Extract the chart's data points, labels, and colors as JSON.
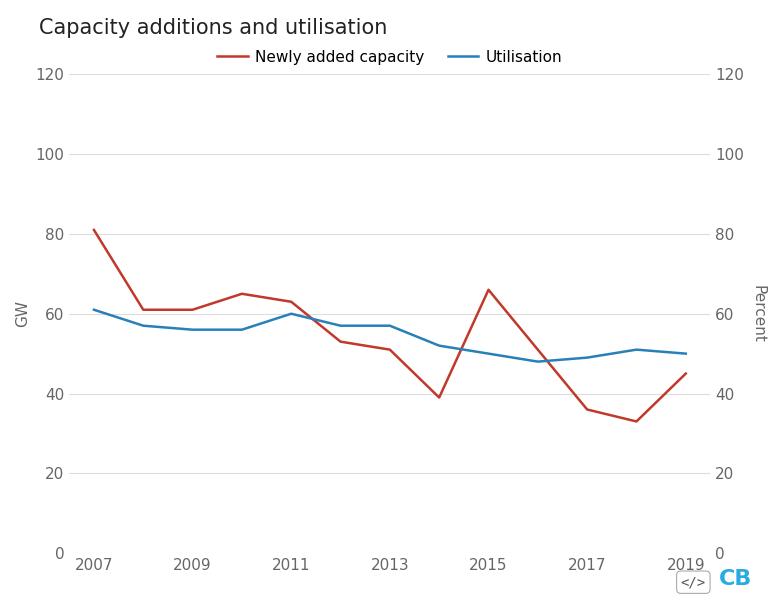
{
  "years": [
    2007,
    2008,
    2009,
    2010,
    2011,
    2012,
    2013,
    2014,
    2015,
    2016,
    2017,
    2018,
    2019
  ],
  "capacity_additions": [
    81,
    61,
    61,
    65,
    63,
    53,
    51,
    39,
    66,
    51,
    36,
    33,
    45
  ],
  "utilisation": [
    61,
    57,
    56,
    56,
    60,
    57,
    57,
    52,
    50,
    48,
    49,
    51,
    50
  ],
  "title": "Capacity additions and utilisation",
  "ylabel_left": "GW",
  "ylabel_right": "Percent",
  "legend_capacity": "Newly added capacity",
  "legend_utilisation": "Utilisation",
  "color_capacity": "#c0392b",
  "color_utilisation": "#2980b9",
  "ylim": [
    0,
    120
  ],
  "yticks": [
    0,
    20,
    40,
    60,
    80,
    100,
    120
  ],
  "xticks": [
    2007,
    2009,
    2011,
    2013,
    2015,
    2017,
    2019
  ],
  "background_color": "#ffffff",
  "grid_color": "#dddddd",
  "title_fontsize": 15,
  "axis_fontsize": 11,
  "tick_fontsize": 11,
  "legend_fontsize": 11,
  "linewidth": 1.8
}
